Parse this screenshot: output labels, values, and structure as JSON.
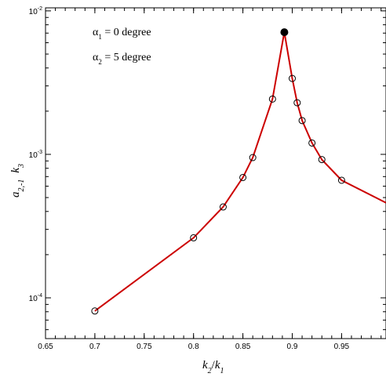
{
  "chart_data": {
    "type": "line",
    "xlabel": {
      "base": "k",
      "sub": "2",
      "sep": "/",
      "base2": "k",
      "sub2": "1"
    },
    "ylabel": {
      "base": "a",
      "sub": "2,-1",
      "mid": "k",
      "sub2": "3"
    },
    "xlim": [
      0.65,
      0.995
    ],
    "ylim": [
      5.2e-05,
      0.0105
    ],
    "y_scale": "log",
    "grid": false,
    "line_color": "#cc0000",
    "x_ticks": [
      {
        "value": 0.65,
        "label": "0.65"
      },
      {
        "value": 0.7,
        "label": "0.7"
      },
      {
        "value": 0.75,
        "label": "0.75"
      },
      {
        "value": 0.8,
        "label": "0.8"
      },
      {
        "value": 0.85,
        "label": "0.85"
      },
      {
        "value": 0.9,
        "label": "0.9"
      },
      {
        "value": 0.95,
        "label": "0.95"
      }
    ],
    "y_ticks": [
      {
        "value": 0.0001,
        "mantissa": "10",
        "exp": "-4"
      },
      {
        "value": 0.001,
        "mantissa": "10",
        "exp": "-3"
      },
      {
        "value": 0.01,
        "mantissa": "10",
        "exp": "-2"
      }
    ],
    "annotations": [
      {
        "greek": "α",
        "sub": "1",
        "text": " = 0 degree"
      },
      {
        "greek": "α",
        "sub": "2",
        "text": " = 5 degree"
      }
    ],
    "points": [
      {
        "x": 0.7,
        "y": 8.1e-05
      },
      {
        "x": 0.8,
        "y": 0.000262
      },
      {
        "x": 0.83,
        "y": 0.00043
      },
      {
        "x": 0.85,
        "y": 0.00069
      },
      {
        "x": 0.86,
        "y": 0.00095
      },
      {
        "x": 0.88,
        "y": 0.00243
      },
      {
        "x": 0.892,
        "y": 0.0071,
        "filled": true
      },
      {
        "x": 0.9,
        "y": 0.00338
      },
      {
        "x": 0.905,
        "y": 0.00229
      },
      {
        "x": 0.91,
        "y": 0.00172
      },
      {
        "x": 0.92,
        "y": 0.0012
      },
      {
        "x": 0.93,
        "y": 0.00092
      },
      {
        "x": 0.95,
        "y": 0.00066
      },
      {
        "x": 0.995,
        "y": 0.00046,
        "marker": false
      }
    ]
  }
}
